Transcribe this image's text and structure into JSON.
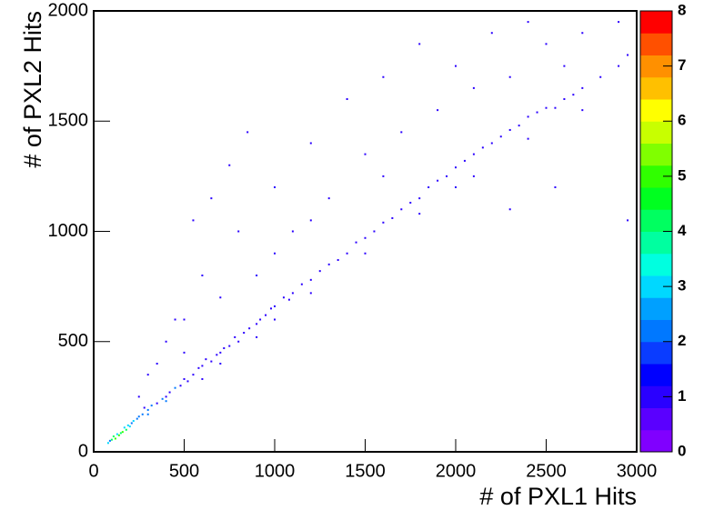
{
  "chart_data": {
    "type": "heatmap2d",
    "x_label": "# of PXL1 Hits",
    "y_label": "# of PXL2 Hits",
    "xlim": [
      0,
      3000
    ],
    "xticks": [
      0,
      500,
      1000,
      1500,
      2000,
      2500,
      3000
    ],
    "ylim": [
      0,
      2000
    ],
    "yticks": [
      0,
      500,
      1000,
      1500,
      2000
    ],
    "zlim": [
      0,
      8
    ],
    "zticks": [
      0,
      1,
      2,
      3,
      4,
      5,
      6,
      7,
      8
    ],
    "palette": [
      "#8000ff",
      "#5a00ff",
      "#2a00ff",
      "#0000ff",
      "#0a3cff",
      "#0078ff",
      "#00a0ff",
      "#00d8ff",
      "#00ffe0",
      "#00ffa0",
      "#00ff60",
      "#00ff20",
      "#30ff00",
      "#80ff00",
      "#c8ff00",
      "#ffff00",
      "#ffc000",
      "#ff9000",
      "#ff5000",
      "#ff0000"
    ],
    "points": [
      {
        "x": 80,
        "y": 40,
        "count": 3
      },
      {
        "x": 100,
        "y": 55,
        "count": 4
      },
      {
        "x": 120,
        "y": 60,
        "count": 5
      },
      {
        "x": 140,
        "y": 75,
        "count": 5
      },
      {
        "x": 150,
        "y": 85,
        "count": 4
      },
      {
        "x": 160,
        "y": 90,
        "count": 5
      },
      {
        "x": 180,
        "y": 100,
        "count": 4
      },
      {
        "x": 130,
        "y": 80,
        "count": 3
      },
      {
        "x": 110,
        "y": 70,
        "count": 4
      },
      {
        "x": 170,
        "y": 110,
        "count": 3
      },
      {
        "x": 200,
        "y": 115,
        "count": 3
      },
      {
        "x": 90,
        "y": 50,
        "count": 2
      },
      {
        "x": 210,
        "y": 130,
        "count": 2
      },
      {
        "x": 220,
        "y": 140,
        "count": 3
      },
      {
        "x": 240,
        "y": 150,
        "count": 2
      },
      {
        "x": 250,
        "y": 160,
        "count": 2
      },
      {
        "x": 190,
        "y": 120,
        "count": 3
      },
      {
        "x": 270,
        "y": 170,
        "count": 2
      },
      {
        "x": 300,
        "y": 190,
        "count": 2
      },
      {
        "x": 280,
        "y": 200,
        "count": 1
      },
      {
        "x": 320,
        "y": 210,
        "count": 2
      },
      {
        "x": 350,
        "y": 220,
        "count": 1
      },
      {
        "x": 380,
        "y": 240,
        "count": 2
      },
      {
        "x": 400,
        "y": 250,
        "count": 1
      },
      {
        "x": 420,
        "y": 270,
        "count": 1
      },
      {
        "x": 450,
        "y": 290,
        "count": 2
      },
      {
        "x": 480,
        "y": 300,
        "count": 1
      },
      {
        "x": 500,
        "y": 330,
        "count": 1
      },
      {
        "x": 520,
        "y": 320,
        "count": 1
      },
      {
        "x": 550,
        "y": 350,
        "count": 1
      },
      {
        "x": 580,
        "y": 380,
        "count": 1
      },
      {
        "x": 600,
        "y": 390,
        "count": 1
      },
      {
        "x": 620,
        "y": 420,
        "count": 1
      },
      {
        "x": 650,
        "y": 410,
        "count": 1
      },
      {
        "x": 680,
        "y": 440,
        "count": 1
      },
      {
        "x": 700,
        "y": 450,
        "count": 1
      },
      {
        "x": 720,
        "y": 470,
        "count": 1
      },
      {
        "x": 750,
        "y": 480,
        "count": 1
      },
      {
        "x": 780,
        "y": 520,
        "count": 1
      },
      {
        "x": 800,
        "y": 500,
        "count": 1
      },
      {
        "x": 830,
        "y": 540,
        "count": 1
      },
      {
        "x": 860,
        "y": 560,
        "count": 1
      },
      {
        "x": 900,
        "y": 580,
        "count": 1
      },
      {
        "x": 920,
        "y": 600,
        "count": 1
      },
      {
        "x": 950,
        "y": 620,
        "count": 1
      },
      {
        "x": 980,
        "y": 650,
        "count": 1
      },
      {
        "x": 1000,
        "y": 660,
        "count": 1
      },
      {
        "x": 1050,
        "y": 700,
        "count": 1
      },
      {
        "x": 1080,
        "y": 690,
        "count": 1
      },
      {
        "x": 1100,
        "y": 720,
        "count": 1
      },
      {
        "x": 1150,
        "y": 760,
        "count": 1
      },
      {
        "x": 1200,
        "y": 780,
        "count": 1
      },
      {
        "x": 1250,
        "y": 820,
        "count": 1
      },
      {
        "x": 1300,
        "y": 850,
        "count": 1
      },
      {
        "x": 1350,
        "y": 870,
        "count": 1
      },
      {
        "x": 1400,
        "y": 900,
        "count": 1
      },
      {
        "x": 1450,
        "y": 950,
        "count": 1
      },
      {
        "x": 1500,
        "y": 970,
        "count": 1
      },
      {
        "x": 1550,
        "y": 1000,
        "count": 1
      },
      {
        "x": 1600,
        "y": 1040,
        "count": 1
      },
      {
        "x": 1650,
        "y": 1060,
        "count": 1
      },
      {
        "x": 1700,
        "y": 1100,
        "count": 1
      },
      {
        "x": 1750,
        "y": 1130,
        "count": 1
      },
      {
        "x": 1800,
        "y": 1150,
        "count": 1
      },
      {
        "x": 1850,
        "y": 1200,
        "count": 1
      },
      {
        "x": 1900,
        "y": 1230,
        "count": 1
      },
      {
        "x": 1950,
        "y": 1250,
        "count": 1
      },
      {
        "x": 2000,
        "y": 1290,
        "count": 1
      },
      {
        "x": 2050,
        "y": 1320,
        "count": 1
      },
      {
        "x": 2100,
        "y": 1350,
        "count": 1
      },
      {
        "x": 2150,
        "y": 1380,
        "count": 1
      },
      {
        "x": 2200,
        "y": 1400,
        "count": 1
      },
      {
        "x": 2250,
        "y": 1430,
        "count": 1
      },
      {
        "x": 2300,
        "y": 1460,
        "count": 1
      },
      {
        "x": 2350,
        "y": 1480,
        "count": 1
      },
      {
        "x": 2400,
        "y": 1520,
        "count": 1
      },
      {
        "x": 2450,
        "y": 1540,
        "count": 1
      },
      {
        "x": 2500,
        "y": 1560,
        "count": 1
      },
      {
        "x": 2550,
        "y": 1560,
        "count": 1
      },
      {
        "x": 2600,
        "y": 1600,
        "count": 1
      },
      {
        "x": 2650,
        "y": 1620,
        "count": 1
      },
      {
        "x": 2700,
        "y": 1650,
        "count": 1
      },
      {
        "x": 2800,
        "y": 1700,
        "count": 1
      },
      {
        "x": 2900,
        "y": 1750,
        "count": 1
      },
      {
        "x": 2950,
        "y": 1800,
        "count": 1
      },
      {
        "x": 600,
        "y": 330,
        "count": 1
      },
      {
        "x": 900,
        "y": 520,
        "count": 1
      },
      {
        "x": 1200,
        "y": 720,
        "count": 1
      },
      {
        "x": 1500,
        "y": 900,
        "count": 1
      },
      {
        "x": 1800,
        "y": 1080,
        "count": 1
      },
      {
        "x": 2100,
        "y": 1250,
        "count": 1
      },
      {
        "x": 2400,
        "y": 1420,
        "count": 1
      },
      {
        "x": 2700,
        "y": 1550,
        "count": 1
      },
      {
        "x": 2000,
        "y": 1200,
        "count": 1
      },
      {
        "x": 1000,
        "y": 600,
        "count": 1
      },
      {
        "x": 700,
        "y": 400,
        "count": 1
      },
      {
        "x": 400,
        "y": 230,
        "count": 2
      },
      {
        "x": 300,
        "y": 170,
        "count": 2
      },
      {
        "x": 300,
        "y": 350,
        "count": 1
      },
      {
        "x": 400,
        "y": 500,
        "count": 1
      },
      {
        "x": 500,
        "y": 600,
        "count": 1
      },
      {
        "x": 600,
        "y": 800,
        "count": 1
      },
      {
        "x": 700,
        "y": 700,
        "count": 1
      },
      {
        "x": 800,
        "y": 1000,
        "count": 1
      },
      {
        "x": 550,
        "y": 1050,
        "count": 1
      },
      {
        "x": 650,
        "y": 1150,
        "count": 1
      },
      {
        "x": 750,
        "y": 1300,
        "count": 1
      },
      {
        "x": 850,
        "y": 1450,
        "count": 1
      },
      {
        "x": 1000,
        "y": 1200,
        "count": 1
      },
      {
        "x": 1100,
        "y": 1000,
        "count": 1
      },
      {
        "x": 1200,
        "y": 1400,
        "count": 1
      },
      {
        "x": 1300,
        "y": 1150,
        "count": 1
      },
      {
        "x": 1400,
        "y": 1600,
        "count": 1
      },
      {
        "x": 1500,
        "y": 1350,
        "count": 1
      },
      {
        "x": 1600,
        "y": 1700,
        "count": 1
      },
      {
        "x": 1700,
        "y": 1450,
        "count": 1
      },
      {
        "x": 1800,
        "y": 1850,
        "count": 1
      },
      {
        "x": 1900,
        "y": 1550,
        "count": 1
      },
      {
        "x": 2000,
        "y": 1750,
        "count": 1
      },
      {
        "x": 2100,
        "y": 1650,
        "count": 1
      },
      {
        "x": 2200,
        "y": 1900,
        "count": 1
      },
      {
        "x": 2300,
        "y": 1700,
        "count": 1
      },
      {
        "x": 2400,
        "y": 1950,
        "count": 1
      },
      {
        "x": 2500,
        "y": 1850,
        "count": 1
      },
      {
        "x": 2600,
        "y": 1750,
        "count": 1
      },
      {
        "x": 2700,
        "y": 1900,
        "count": 1
      },
      {
        "x": 2900,
        "y": 1950,
        "count": 1
      },
      {
        "x": 2950,
        "y": 1050,
        "count": 1
      },
      {
        "x": 2550,
        "y": 1200,
        "count": 1
      },
      {
        "x": 2300,
        "y": 1100,
        "count": 1
      },
      {
        "x": 1000,
        "y": 900,
        "count": 1
      },
      {
        "x": 1200,
        "y": 1050,
        "count": 1
      },
      {
        "x": 900,
        "y": 800,
        "count": 1
      },
      {
        "x": 500,
        "y": 450,
        "count": 1
      },
      {
        "x": 350,
        "y": 400,
        "count": 1
      },
      {
        "x": 250,
        "y": 250,
        "count": 1
      },
      {
        "x": 450,
        "y": 600,
        "count": 1
      },
      {
        "x": 1600,
        "y": 1250,
        "count": 1
      }
    ]
  }
}
